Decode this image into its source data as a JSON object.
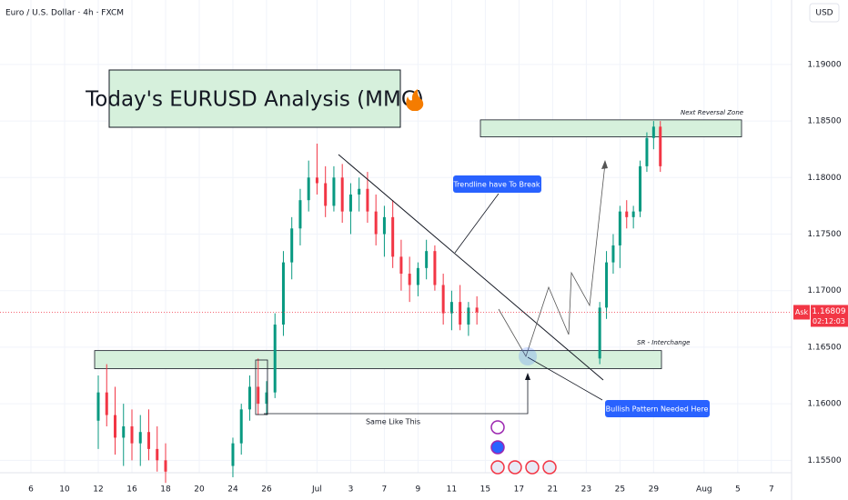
{
  "chart_data": {
    "type": "candlestick",
    "header": "Euro / U.S. Dollar · 4h · FXCM",
    "currency": "USD",
    "title": "Today's EURUSD Analysis (MMC)",
    "annotations": [
      "Trendline have To Break",
      "Bullish Pattern Needed Here",
      "Same Like This"
    ],
    "zones": [
      {
        "label": "Next Reversal Zone",
        "low": 1.1836,
        "high": 1.1851
      },
      {
        "label": "SR - Interchange",
        "low": 1.1631,
        "high": 1.1647
      }
    ],
    "colors": {
      "up": "#089981",
      "down": "#f23645"
    },
    "candles": {
      "x": [
        4.0,
        4.5,
        5.0,
        5.5,
        6.0,
        6.5,
        7.0,
        7.5,
        8.0,
        12.0,
        12.5,
        13.0,
        13.5,
        14.0,
        14.5,
        15.0,
        15.5,
        16.0,
        16.5,
        17.0,
        17.5,
        18.0,
        18.5,
        19.0,
        19.5,
        20.0,
        20.5,
        21.0,
        21.5,
        22.0,
        22.5,
        23.0,
        23.5,
        24.0,
        24.5,
        25.0,
        25.5,
        26.0,
        26.5,
        33.8,
        34.2,
        34.6,
        35.0,
        35.4,
        35.8,
        36.2,
        36.6,
        37.0,
        37.4
      ],
      "open": [
        1.1585,
        1.161,
        1.159,
        1.157,
        1.158,
        1.1565,
        1.1575,
        1.156,
        1.155,
        1.1545,
        1.1565,
        1.1595,
        1.1615,
        1.16,
        1.161,
        1.167,
        1.1725,
        1.1755,
        1.178,
        1.18,
        1.1795,
        1.1775,
        1.18,
        1.177,
        1.1785,
        1.179,
        1.177,
        1.175,
        1.1765,
        1.173,
        1.1715,
        1.1705,
        1.172,
        1.1735,
        1.1705,
        1.168,
        1.169,
        1.167,
        1.1685,
        1.164,
        1.1685,
        1.1725,
        1.174,
        1.177,
        1.1765,
        1.177,
        1.181,
        1.1835,
        1.1845
      ],
      "high": [
        1.1625,
        1.1635,
        1.1615,
        1.16,
        1.1595,
        1.159,
        1.1595,
        1.158,
        1.1565,
        1.157,
        1.16,
        1.1625,
        1.164,
        1.162,
        1.168,
        1.1735,
        1.1765,
        1.179,
        1.1815,
        1.183,
        1.181,
        1.181,
        1.1812,
        1.1795,
        1.18,
        1.1805,
        1.1785,
        1.1775,
        1.178,
        1.1745,
        1.173,
        1.1725,
        1.1745,
        1.174,
        1.1715,
        1.17,
        1.1705,
        1.169,
        1.1695,
        1.169,
        1.1735,
        1.175,
        1.1775,
        1.178,
        1.1775,
        1.1815,
        1.184,
        1.185,
        1.185
      ],
      "low": [
        1.156,
        1.158,
        1.1555,
        1.1545,
        1.155,
        1.1545,
        1.155,
        1.154,
        1.153,
        1.1535,
        1.1555,
        1.1585,
        1.159,
        1.159,
        1.1605,
        1.166,
        1.171,
        1.174,
        1.177,
        1.1785,
        1.1765,
        1.177,
        1.176,
        1.175,
        1.177,
        1.176,
        1.174,
        1.173,
        1.172,
        1.17,
        1.169,
        1.1695,
        1.171,
        1.17,
        1.167,
        1.1665,
        1.1665,
        1.166,
        1.167,
        1.1635,
        1.1675,
        1.1715,
        1.172,
        1.1755,
        1.1755,
        1.1765,
        1.1805,
        1.1825,
        1.1805
      ],
      "close": [
        1.161,
        1.159,
        1.157,
        1.158,
        1.1565,
        1.1575,
        1.156,
        1.155,
        1.154,
        1.1565,
        1.1595,
        1.1615,
        1.16,
        1.161,
        1.167,
        1.1725,
        1.1755,
        1.178,
        1.18,
        1.1795,
        1.1775,
        1.18,
        1.177,
        1.1785,
        1.179,
        1.177,
        1.175,
        1.1765,
        1.173,
        1.1715,
        1.1705,
        1.172,
        1.1735,
        1.1705,
        1.168,
        1.169,
        1.167,
        1.1685,
        1.16809,
        1.1685,
        1.1725,
        1.174,
        1.177,
        1.1765,
        1.177,
        1.181,
        1.1835,
        1.1845,
        1.181
      ]
    },
    "last_price": 1.16809,
    "price_tag": "Ask",
    "countdown": "02:12:03",
    "xlim": [
      -1.84,
      45.2
    ],
    "xticks": [
      {
        "value": 0,
        "label": "6"
      },
      {
        "value": 2,
        "label": "10"
      },
      {
        "value": 4,
        "label": "12"
      },
      {
        "value": 6,
        "label": "16"
      },
      {
        "value": 8,
        "label": "18"
      },
      {
        "value": 10,
        "label": "20"
      },
      {
        "value": 12,
        "label": "24"
      },
      {
        "value": 14,
        "label": "26"
      },
      {
        "value": 17,
        "label": "Jul"
      },
      {
        "value": 19,
        "label": "3"
      },
      {
        "value": 21,
        "label": "7"
      },
      {
        "value": 23,
        "label": "9"
      },
      {
        "value": 25,
        "label": "11"
      },
      {
        "value": 27,
        "label": "15"
      },
      {
        "value": 29,
        "label": "17"
      },
      {
        "value": 31,
        "label": "21"
      },
      {
        "value": 33,
        "label": "23"
      },
      {
        "value": 35,
        "label": "25"
      },
      {
        "value": 37,
        "label": "29"
      },
      {
        "value": 40,
        "label": "Aug"
      },
      {
        "value": 42,
        "label": "5"
      },
      {
        "value": 44,
        "label": "7"
      }
    ],
    "ylim": [
      1.1539,
      1.1957
    ],
    "yticks": [
      {
        "value": 1.19,
        "label": "1.19000"
      },
      {
        "value": 1.185,
        "label": "1.18500"
      },
      {
        "value": 1.18,
        "label": "1.18000"
      },
      {
        "value": 1.175,
        "label": "1.17500"
      },
      {
        "value": 1.17,
        "label": "1.17000"
      },
      {
        "value": 1.165,
        "label": "1.16500"
      },
      {
        "value": 1.16,
        "label": "1.16000"
      },
      {
        "value": 1.155,
        "label": "1.15500"
      }
    ],
    "grid": true
  }
}
